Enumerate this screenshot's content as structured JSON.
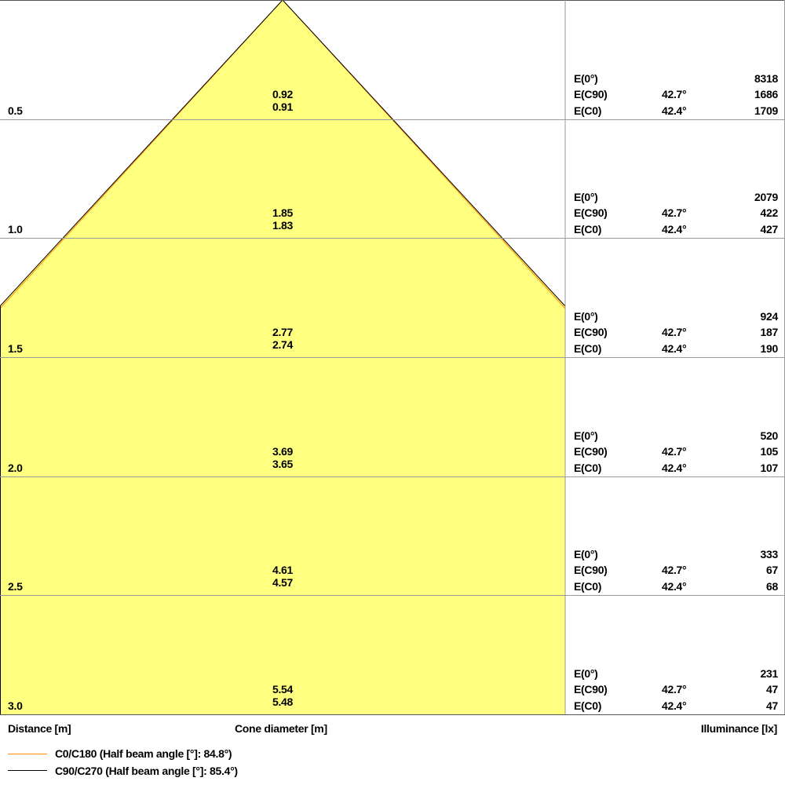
{
  "colors": {
    "cone_fill": "#ffff80",
    "c0_line": "#ff8c00",
    "c90_line": "#000000",
    "grid": "#9a9a9a"
  },
  "rows": [
    {
      "distance": "0.5",
      "d_c90": "0.92",
      "d_c0": "0.91",
      "e0": "8318",
      "ec90": "1686",
      "ec0": "1709"
    },
    {
      "distance": "1.0",
      "d_c90": "1.85",
      "d_c0": "1.83",
      "e0": "2079",
      "ec90": "422",
      "ec0": "427"
    },
    {
      "distance": "1.5",
      "d_c90": "2.77",
      "d_c0": "2.74",
      "e0": "924",
      "ec90": "187",
      "ec0": "190"
    },
    {
      "distance": "2.0",
      "d_c90": "3.69",
      "d_c0": "3.65",
      "e0": "520",
      "ec90": "105",
      "ec0": "107"
    },
    {
      "distance": "2.5",
      "d_c90": "4.61",
      "d_c0": "4.57",
      "e0": "333",
      "ec90": "67",
      "ec0": "68"
    },
    {
      "distance": "3.0",
      "d_c90": "5.54",
      "d_c0": "5.48",
      "e0": "231",
      "ec90": "47",
      "ec0": "47"
    }
  ],
  "labels": {
    "e0": "E(0°)",
    "ec90": "E(C90)",
    "ec0": "E(C0)",
    "angle_c90": "42.7°",
    "angle_c0": "42.4°"
  },
  "axes": {
    "distance": "Distance [m]",
    "cone": "Cone diameter [m]",
    "illuminance": "Illuminance [lx]"
  },
  "legend": [
    {
      "label": "C0/C180 (Half beam angle [°]: 84.8°)"
    },
    {
      "label": "C90/C270 (Half beam angle [°]: 85.4°)"
    }
  ]
}
